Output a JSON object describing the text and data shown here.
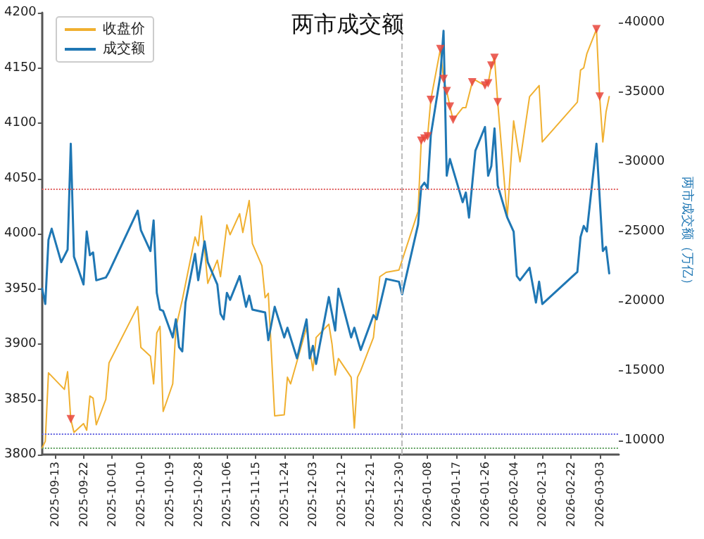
{
  "chart_data": {
    "type": "line",
    "title": "两市成交额",
    "y2label": "两市成交额（万亿）",
    "xlim": [
      "2025-09-09",
      "2026-03-09"
    ],
    "xticks": [
      "2025-09-13",
      "2025-09-22",
      "2025-10-01",
      "2025-10-10",
      "2025-10-19",
      "2025-10-28",
      "2025-11-06",
      "2025-11-15",
      "2025-11-24",
      "2025-12-03",
      "2025-12-12",
      "2025-12-21",
      "2025-12-30",
      "2026-01-08",
      "2026-01-17",
      "2026-01-26",
      "2026-02-04",
      "2026-02-13",
      "2026-02-22",
      "2026-03-03"
    ],
    "ylim": [
      3800,
      4200
    ],
    "yticks": [
      3800,
      3850,
      3900,
      3950,
      4000,
      4050,
      4100,
      4150,
      4200
    ],
    "y2lim": [
      9000,
      40700
    ],
    "y2ticks": [
      10000,
      15000,
      20000,
      25000,
      30000,
      35000,
      40000
    ],
    "grid": false,
    "legend": "top left",
    "marker": "none",
    "line_style": "solid",
    "series": [
      {
        "name": "收盘价",
        "color": "#f0b030",
        "x": [
          "2025-09-09",
          "2025-09-10",
          "2025-09-11",
          "2025-09-16",
          "2025-09-17",
          "2025-09-18",
          "2025-09-19",
          "2025-09-22",
          "2025-09-23",
          "2025-09-24",
          "2025-09-25",
          "2025-09-26",
          "2025-09-29",
          "2025-09-30",
          "2025-10-09",
          "2025-10-10",
          "2025-10-13",
          "2025-10-14",
          "2025-10-15",
          "2025-10-16",
          "2025-10-17",
          "2025-10-20",
          "2025-10-21",
          "2025-10-23",
          "2025-10-27",
          "2025-10-28",
          "2025-10-29",
          "2025-10-31",
          "2025-11-03",
          "2025-11-04",
          "2025-11-06",
          "2025-11-07",
          "2025-11-10",
          "2025-11-11",
          "2025-11-13",
          "2025-11-14",
          "2025-11-17",
          "2025-11-18",
          "2025-11-19",
          "2025-11-21",
          "2025-11-24",
          "2025-11-25",
          "2025-11-26",
          "2025-12-01",
          "2025-12-03",
          "2025-12-04",
          "2025-12-08",
          "2025-12-09",
          "2025-12-10",
          "2025-12-11",
          "2025-12-15",
          "2025-12-16",
          "2025-12-17",
          "2025-12-18",
          "2025-12-22",
          "2025-12-24",
          "2025-12-26",
          "2025-12-30",
          "2026-01-05",
          "2026-01-06",
          "2026-01-07",
          "2026-01-08",
          "2026-01-09",
          "2026-01-12",
          "2026-01-13",
          "2026-01-14",
          "2026-01-15",
          "2026-01-16",
          "2026-01-19",
          "2026-01-20",
          "2026-01-22",
          "2026-01-23",
          "2026-01-26",
          "2026-01-27",
          "2026-01-28",
          "2026-01-29",
          "2026-01-30",
          "2026-02-02",
          "2026-02-04",
          "2026-02-06",
          "2026-02-09",
          "2026-02-12",
          "2026-02-13",
          "2026-02-24",
          "2026-02-25",
          "2026-02-26",
          "2026-02-27",
          "2026-03-02",
          "2026-03-03",
          "2026-03-04",
          "2026-03-05",
          "2026-03-06"
        ],
        "values": [
          3806,
          3812,
          3874,
          3859,
          3875,
          3832,
          3820,
          3828,
          3822,
          3853,
          3851,
          3827,
          3850,
          3883,
          3934,
          3897,
          3889,
          3864,
          3910,
          3916,
          3839,
          3864,
          3915,
          3940,
          3997,
          3989,
          4016,
          3955,
          3976,
          3961,
          4008,
          3999,
          4018,
          4001,
          4030,
          3991,
          3971,
          3942,
          3946,
          3835,
          3836,
          3870,
          3864,
          3915,
          3876,
          3906,
          3918,
          3900,
          3872,
          3887,
          3870,
          3824,
          3870,
          3876,
          3906,
          3961,
          3965,
          3967,
          4020,
          4084,
          4086,
          4088,
          4121,
          4167,
          4140,
          4129,
          4115,
          4103,
          4114,
          4114,
          4137,
          4139,
          4134,
          4136,
          4152,
          4159,
          4119,
          4015,
          4102,
          4065,
          4124,
          4134,
          4083,
          4119,
          4148,
          4150,
          4163,
          4185,
          4124,
          4083,
          4110,
          4124
        ]
      },
      {
        "name": "成交额",
        "color": "#1f77b4",
        "axis": "y2",
        "x": [
          "2025-09-09",
          "2025-09-10",
          "2025-09-11",
          "2025-09-12",
          "2025-09-15",
          "2025-09-17",
          "2025-09-18",
          "2025-09-19",
          "2025-09-22",
          "2025-09-23",
          "2025-09-24",
          "2025-09-25",
          "2025-09-26",
          "2025-09-29",
          "2025-09-30",
          "2025-10-09",
          "2025-10-10",
          "2025-10-13",
          "2025-10-14",
          "2025-10-15",
          "2025-10-16",
          "2025-10-17",
          "2025-10-20",
          "2025-10-21",
          "2025-10-22",
          "2025-10-23",
          "2025-10-24",
          "2025-10-27",
          "2025-10-28",
          "2025-10-30",
          "2025-10-31",
          "2025-11-03",
          "2025-11-04",
          "2025-11-05",
          "2025-11-06",
          "2025-11-07",
          "2025-11-10",
          "2025-11-12",
          "2025-11-13",
          "2025-11-14",
          "2025-11-18",
          "2025-11-19",
          "2025-11-21",
          "2025-11-24",
          "2025-11-25",
          "2025-11-28",
          "2025-12-01",
          "2025-12-02",
          "2025-12-03",
          "2025-12-04",
          "2025-12-08",
          "2025-12-10",
          "2025-12-11",
          "2025-12-15",
          "2025-12-16",
          "2025-12-18",
          "2025-12-22",
          "2025-12-23",
          "2025-12-26",
          "2025-12-30",
          "2025-12-31",
          "2026-01-05",
          "2026-01-06",
          "2026-01-07",
          "2026-01-08",
          "2026-01-09",
          "2026-01-12",
          "2026-01-13",
          "2026-01-14",
          "2026-01-15",
          "2026-01-19",
          "2026-01-20",
          "2026-01-21",
          "2026-01-23",
          "2026-01-26",
          "2026-01-27",
          "2026-01-28",
          "2026-01-29",
          "2026-01-30",
          "2026-02-02",
          "2026-02-04",
          "2026-02-05",
          "2026-02-06",
          "2026-02-09",
          "2026-02-11",
          "2026-02-12",
          "2026-02-13",
          "2026-02-24",
          "2026-02-25",
          "2026-02-26",
          "2026-02-27",
          "2026-03-02",
          "2026-03-04",
          "2026-03-05",
          "2026-03-06"
        ],
        "values": [
          20900,
          19800,
          24400,
          25200,
          22800,
          23700,
          31300,
          23200,
          21200,
          25000,
          23300,
          23500,
          21500,
          21700,
          22100,
          26500,
          25100,
          23600,
          25800,
          20600,
          19400,
          19300,
          17400,
          18700,
          16700,
          16400,
          19900,
          23400,
          21500,
          24300,
          22800,
          21200,
          19100,
          18700,
          20600,
          20100,
          21800,
          19600,
          20400,
          19400,
          19200,
          17200,
          19600,
          17400,
          18100,
          15900,
          18700,
          15900,
          16800,
          15500,
          20300,
          17900,
          20900,
          17400,
          18100,
          16500,
          19000,
          18700,
          21600,
          21400,
          20500,
          25500,
          28200,
          28500,
          28100,
          31900,
          36200,
          39400,
          29000,
          30200,
          27100,
          27800,
          26000,
          30800,
          32500,
          29000,
          29700,
          32400,
          28300,
          26000,
          25000,
          21800,
          21500,
          22400,
          19900,
          21400,
          19800,
          22100,
          24600,
          25400,
          25000,
          31300,
          23600,
          23900,
          22000
        ]
      },
      {
        "type": "scatter",
        "color": "#e8453c",
        "marker": "triangle",
        "x": [
          "2025-09-18",
          "2026-01-06",
          "2026-01-07",
          "2026-01-08",
          "2026-01-09",
          "2026-01-12",
          "2026-01-13",
          "2026-01-14",
          "2026-01-15",
          "2026-01-16",
          "2026-01-22",
          "2026-01-26",
          "2026-01-27",
          "2026-01-28",
          "2026-01-29",
          "2026-01-30",
          "2026-03-02",
          "2026-03-03"
        ],
        "values": [
          3832,
          4084,
          4086,
          4088,
          4121,
          4167,
          4140,
          4129,
          4115,
          4103,
          4137,
          4134,
          4136,
          4152,
          4159,
          4119,
          4185,
          4124
        ]
      }
    ],
    "ref_lines": [
      {
        "axis": "x",
        "value": "2025-12-31",
        "color": "#bbbbbb",
        "line_style": "dashed"
      },
      {
        "axis": "y",
        "value": 4040,
        "color": "#e06060",
        "line_style": "dotted"
      },
      {
        "axis": "y",
        "value": 3819,
        "color": "#6060e0",
        "line_style": "dotted"
      },
      {
        "axis": "y",
        "value": 3806,
        "color": "#60a060",
        "line_style": "dotted"
      }
    ]
  }
}
